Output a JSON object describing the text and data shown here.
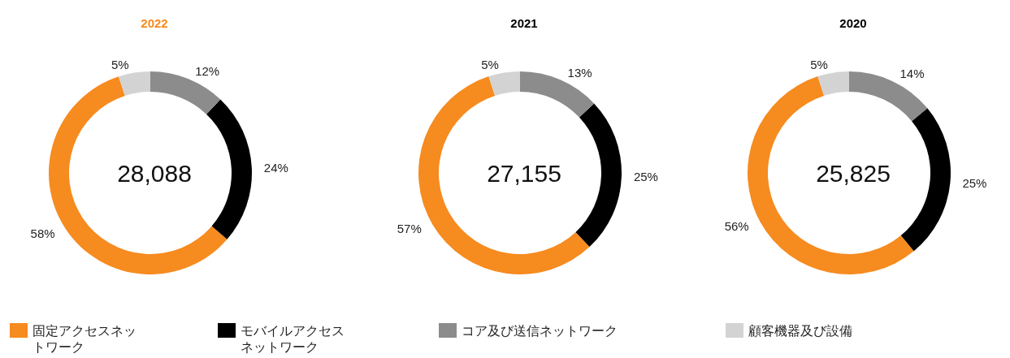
{
  "chart_data": [
    {
      "type": "donut",
      "title": "2022",
      "categories": [
        "固定アクセスネットワーク",
        "モバイルアクセスネットワーク",
        "コア及び送信ネットワーク",
        "顧客機器及び設備"
      ],
      "values": [
        58,
        24,
        12,
        5
      ],
      "value_labels": [
        "58%",
        "24%",
        "12%",
        "5%"
      ],
      "colors": [
        "#f68b1f",
        "#000000",
        "#8c8c8c",
        "#d3d3d3"
      ],
      "annotations": [
        "28,088"
      ],
      "legend": "bottom"
    },
    {
      "type": "donut",
      "title": "2021",
      "categories": [
        null,
        null,
        null,
        null
      ],
      "values": [
        57,
        25,
        13,
        5
      ],
      "value_labels": [
        "57%",
        "25%",
        "13%",
        "5%"
      ],
      "colors": [
        "#f68b1f",
        "#000000",
        "#8c8c8c",
        "#d3d3d3"
      ],
      "annotations": [
        "27,155"
      ]
    },
    {
      "type": "donut",
      "title": "2020",
      "categories": [
        null,
        null,
        null,
        null
      ],
      "values": [
        56,
        25,
        14,
        5
      ],
      "value_labels": [
        "56%",
        "25%",
        "14%",
        "5%"
      ],
      "colors": [
        "#f68b1f",
        "#000000",
        "#8c8c8c",
        "#d3d3d3"
      ],
      "annotations": [
        "25,825"
      ]
    }
  ]
}
